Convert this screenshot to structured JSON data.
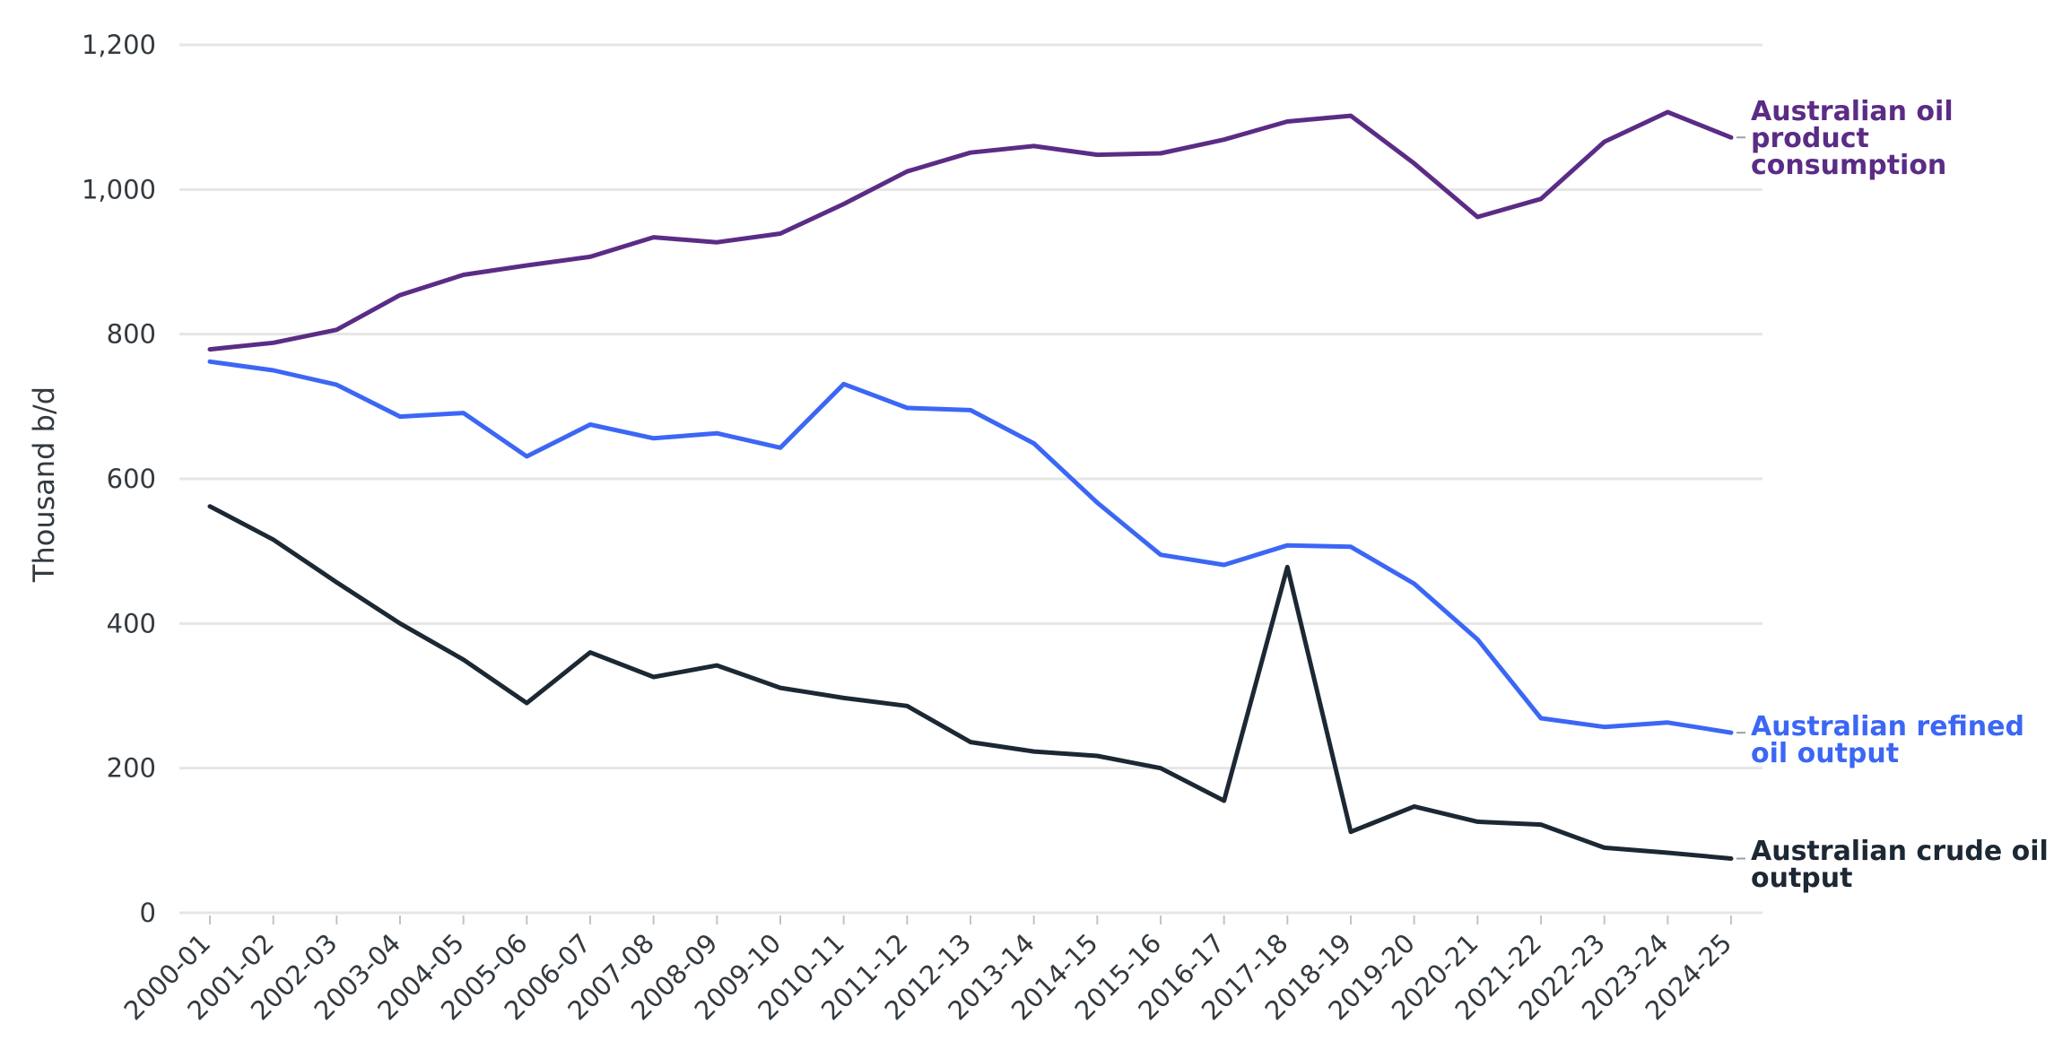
{
  "chart_data": {
    "type": "line",
    "title": "",
    "xlabel": "",
    "ylabel": "Thousand b/d",
    "ylim": [
      0,
      1200
    ],
    "yticks": [
      0,
      200,
      400,
      600,
      800,
      1000,
      1200
    ],
    "ytick_labels": [
      "0",
      "200",
      "400",
      "600",
      "800",
      "1,000",
      "1,200"
    ],
    "grid": "horizontal",
    "legend": "direct labels at line ends (right)",
    "categories": [
      "2000-01",
      "2001-02",
      "2002-03",
      "2003-04",
      "2004-05",
      "2005-06",
      "2006-07",
      "2007-08",
      "2008-09",
      "2009-10",
      "2010-11",
      "2011-12",
      "2012-13",
      "2013-14",
      "2014-15",
      "2015-16",
      "2016-17",
      "2017-18",
      "2018-19",
      "2019-20",
      "2020-21",
      "2021-22",
      "2022-23",
      "2023-24",
      "2024-25"
    ],
    "series": [
      {
        "name": "Australian oil product consumption",
        "label_lines": [
          "Australian oil",
          "product",
          "consumption"
        ],
        "color": "#5b2c86",
        "values": [
          779,
          788,
          806,
          854,
          882,
          895,
          907,
          934,
          927,
          939,
          980,
          1025,
          1051,
          1060,
          1048,
          1050,
          1069,
          1094,
          1102,
          1036,
          962,
          987,
          1066,
          1107,
          1072
        ]
      },
      {
        "name": "Australian refined oil output",
        "label_lines": [
          "Australian refined",
          "oil output"
        ],
        "color": "#3c67f5",
        "values": [
          762,
          750,
          730,
          686,
          691,
          631,
          675,
          656,
          663,
          643,
          731,
          698,
          695,
          649,
          567,
          495,
          481,
          508,
          506,
          455,
          378,
          269,
          257,
          263,
          249
        ]
      },
      {
        "name": "Australian crude oil output",
        "label_lines": [
          "Australian crude oil",
          "output"
        ],
        "color": "#1c2833",
        "values": [
          562,
          516,
          457,
          400,
          350,
          290,
          360,
          326,
          342,
          311,
          297,
          286,
          236,
          223,
          217,
          200,
          155,
          478,
          112,
          147,
          126,
          122,
          90,
          83,
          75
        ]
      }
    ]
  }
}
